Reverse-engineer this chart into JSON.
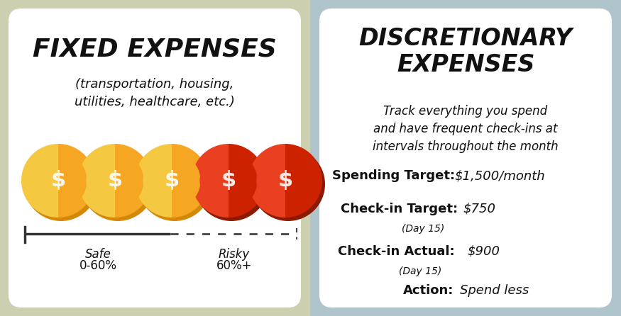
{
  "left_title": "FIXED EXPENSES",
  "left_subtitle": "(transportation, housing,\nutilities, healthcare, etc.)",
  "right_title": "DISCRETIONARY\nEXPENSES",
  "right_subtitle": "Track everything you spend\nand have frequent check-ins at\nintervals throughout the month",
  "coin_safe_dark": "#D4880A",
  "coin_safe_mid": "#F5A623",
  "coin_safe_light": "#F5C842",
  "coin_risky_dark": "#8B1A00",
  "coin_risky_mid": "#CC2200",
  "coin_risky_light": "#E84020",
  "safe_label_line1": "Safe",
  "safe_label_line2": "0-60%",
  "risky_label_line1": "Risky",
  "risky_label_line2": "60%+",
  "spending_target_label": "Spending Target:",
  "spending_target_value": "$1,500/month",
  "checkin_target_label": "Check-in Target:",
  "checkin_target_value": "$750",
  "checkin_target_sub": "(Day 15)",
  "checkin_actual_label": "Check-in Actual:",
  "checkin_actual_value": "$900",
  "checkin_actual_sub": "(Day 15)",
  "action_label": "Action:",
  "action_value": "Spend less",
  "text_color": "#111111",
  "bg_left": "#cccfb0",
  "bg_right": "#b0c4cc",
  "panel_white": "#ffffff"
}
